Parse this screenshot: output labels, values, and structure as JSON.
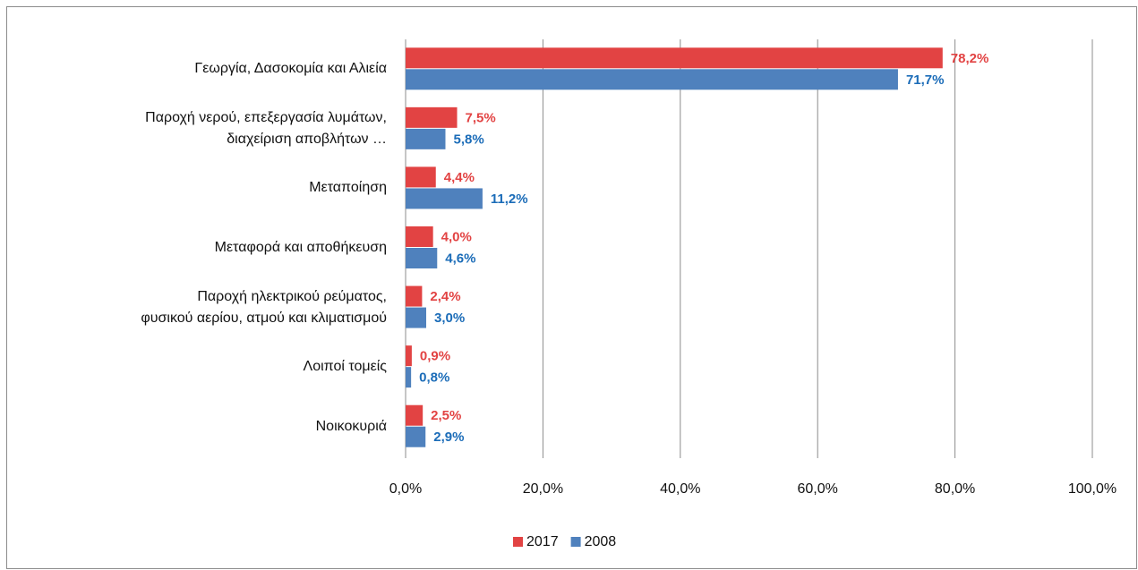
{
  "chart_data": {
    "type": "hbar",
    "categories": [
      "Γεωργία, Δασοκομία και Αλιεία",
      "Παροχή νερού, επεξεργασία λυμάτων,\nδιαχείριση αποβλήτων …",
      "Μεταποίηση",
      "Μεταφορά και αποθήκευση",
      "Παροχή ηλεκτρικού ρεύματος,\nφυσικού αερίου, ατμού και κλιματισμού",
      "Λοιποί τομείς",
      "Νοικοκυριά"
    ],
    "series": [
      {
        "name": "2017",
        "color": "#e24343",
        "label_color": "#e24343",
        "values": [
          78.2,
          7.5,
          4.4,
          4.0,
          2.4,
          0.9,
          2.5
        ],
        "value_labels": [
          "78,2%",
          "7,5%",
          "4,4%",
          "4,0%",
          "2,4%",
          "0,9%",
          "2,5%"
        ]
      },
      {
        "name": "2008",
        "color": "#4f81bd",
        "label_color": "#1b6cb8",
        "values": [
          71.7,
          5.8,
          11.2,
          4.6,
          3.0,
          0.8,
          2.9
        ],
        "value_labels": [
          "71,7%",
          "5,8%",
          "11,2%",
          "4,6%",
          "3,0%",
          "0,8%",
          "2,9%"
        ]
      }
    ],
    "xlim": [
      0,
      100
    ],
    "xticks": [
      {
        "value": 0,
        "label": "0,0%"
      },
      {
        "value": 20,
        "label": "20,0%"
      },
      {
        "value": 40,
        "label": "40,0%"
      },
      {
        "value": 60,
        "label": "60,0%"
      },
      {
        "value": 80,
        "label": "80,0%"
      },
      {
        "value": 100,
        "label": "100,0%"
      }
    ],
    "grid": true,
    "legend": "bottom"
  }
}
